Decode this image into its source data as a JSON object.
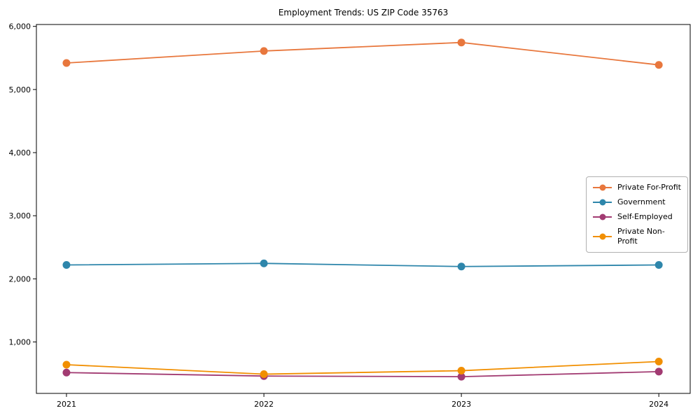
{
  "chart_data": {
    "type": "line",
    "title": "Employment Trends: US ZIP Code 35763",
    "xlabel": "",
    "ylabel": "",
    "grid": false,
    "legend_position": "center-right",
    "categories": [
      "2021",
      "2022",
      "2023",
      "2024"
    ],
    "series": [
      {
        "name": "Private For-Profit",
        "color": "#E8773D",
        "values": [
          5420,
          5610,
          5745,
          5390
        ]
      },
      {
        "name": "Government",
        "color": "#2E86AB",
        "values": [
          2220,
          2245,
          2195,
          2220
        ]
      },
      {
        "name": "Self-Employed",
        "color": "#A23B72",
        "values": [
          515,
          460,
          450,
          530
        ]
      },
      {
        "name": "Private Non-Profit",
        "color": "#F18F01",
        "values": [
          640,
          490,
          545,
          690
        ]
      }
    ],
    "y_ticks": {
      "values": [
        1000,
        2000,
        3000,
        4000,
        5000,
        6000
      ],
      "labels": [
        "1,000",
        "2,000",
        "3,000",
        "4,000",
        "5,000",
        "6,000"
      ]
    },
    "ylim": [
      185,
      6030
    ]
  }
}
